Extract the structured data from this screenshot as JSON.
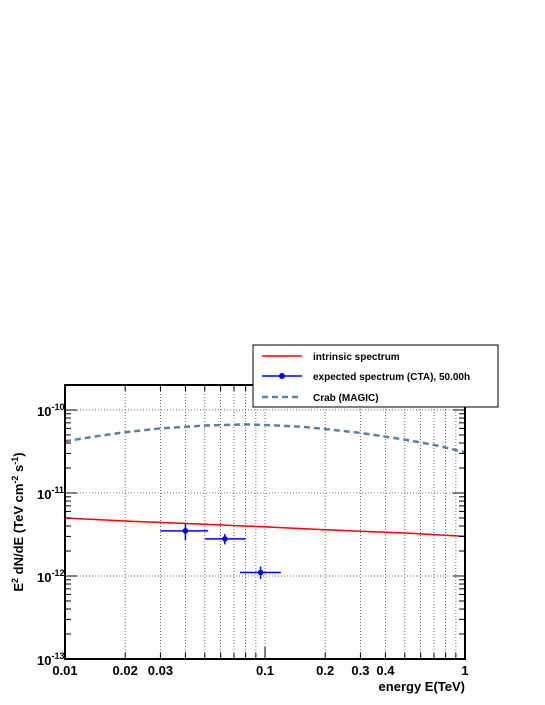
{
  "chart_data": {
    "type": "line",
    "xlabel": "energy E(TeV)",
    "ylabel": "E2 dN/dE (TeV cm-2 s-1)",
    "xscale": "log",
    "yscale": "log",
    "xlim": [
      0.01,
      1
    ],
    "ylim": [
      1e-13,
      2e-10
    ],
    "grid": true,
    "legend_position": "top-right",
    "x_ticks": [
      {
        "value": 0.01,
        "label": "0.01"
      },
      {
        "value": 0.02,
        "label": "0.02"
      },
      {
        "value": 0.03,
        "label": "0.03"
      },
      {
        "value": 0.1,
        "label": "0.1"
      },
      {
        "value": 0.2,
        "label": "0.2"
      },
      {
        "value": 0.3,
        "label": "0.3"
      },
      {
        "value": 0.4,
        "label": "0.4"
      },
      {
        "value": 1,
        "label": "1"
      }
    ],
    "y_ticks": [
      {
        "value": 1e-13,
        "base": "10",
        "exp": "-13"
      },
      {
        "value": 1e-12,
        "base": "10",
        "exp": "-12"
      },
      {
        "value": 1e-11,
        "base": "10",
        "exp": "-11"
      },
      {
        "value": 1e-10,
        "base": "10",
        "exp": "-10"
      }
    ],
    "series": [
      {
        "name": "intrinsic spectrum",
        "style": "line",
        "color": "#ff0000",
        "x": [
          0.01,
          0.02,
          0.05,
          0.1,
          0.2,
          0.5,
          1.0
        ],
        "y": [
          5e-12,
          4.6e-12,
          4.2e-12,
          3.9e-12,
          3.6e-12,
          3.3e-12,
          3e-12
        ]
      },
      {
        "name": "expected spectrum (CTA), 50.00h",
        "style": "errorbar",
        "color": "#0000ff",
        "points": [
          {
            "x": 0.04,
            "y": 3.5e-12,
            "xlo": 0.03,
            "xhi": 0.052,
            "ylo": 2.7e-12,
            "yhi": 4.3e-12
          },
          {
            "x": 0.063,
            "y": 2.8e-12,
            "xlo": 0.05,
            "xhi": 0.08,
            "ylo": 2.4e-12,
            "yhi": 3.2e-12
          },
          {
            "x": 0.095,
            "y": 1.1e-12,
            "xlo": 0.075,
            "xhi": 0.12,
            "ylo": 9.2e-13,
            "yhi": 1.3e-12
          }
        ]
      },
      {
        "name": "Crab (MAGIC)",
        "style": "dashed",
        "color": "#5f7f9f",
        "x": [
          0.01,
          0.015,
          0.02,
          0.03,
          0.05,
          0.08,
          0.1,
          0.15,
          0.2,
          0.3,
          0.5,
          0.7,
          1.0
        ],
        "y": [
          4.2e-11,
          4.9e-11,
          5.4e-11,
          6e-11,
          6.5e-11,
          6.7e-11,
          6.6e-11,
          6.3e-11,
          5.9e-11,
          5.3e-11,
          4.4e-11,
          3.8e-11,
          3.1e-11
        ]
      }
    ]
  }
}
